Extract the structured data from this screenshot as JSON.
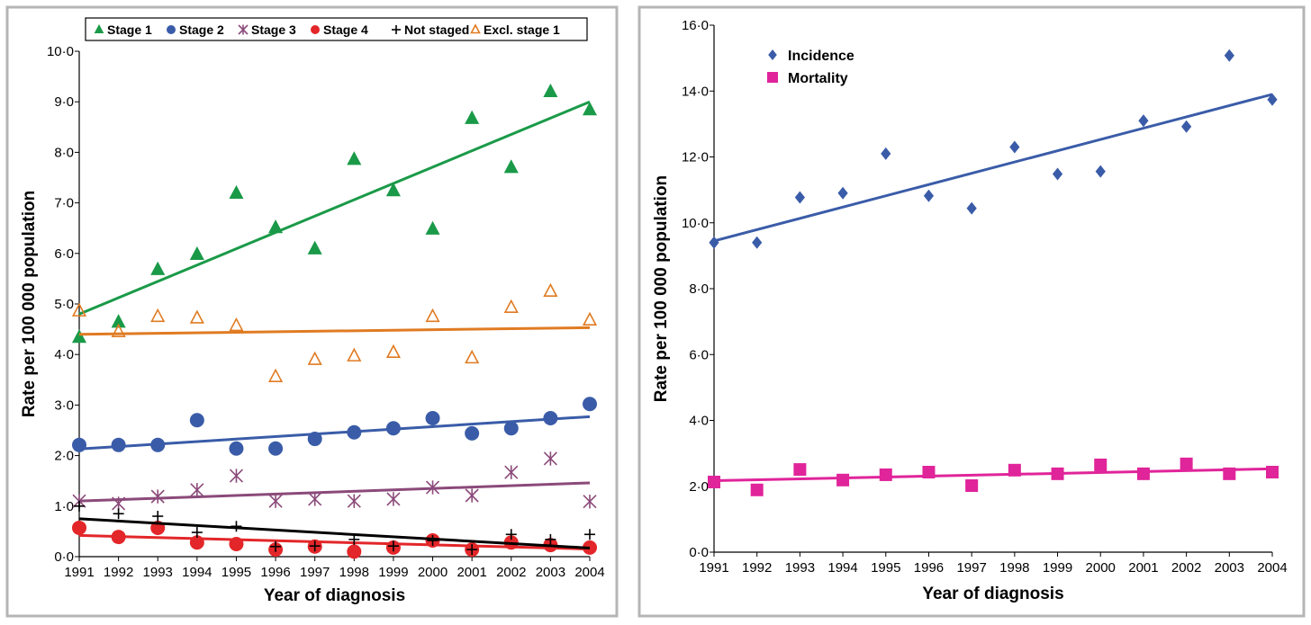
{
  "chart_data": [
    {
      "type": "scatter",
      "title": "",
      "xlabel": "Year of diagnosis",
      "ylabel": "Rate per 100 000 population",
      "ylim": [
        0,
        10
      ],
      "yticks": [
        "0·0",
        "1·0",
        "2·0",
        "3·0",
        "4·0",
        "5·0",
        "6·0",
        "7·0",
        "8·0",
        "9·0",
        "10·0"
      ],
      "x": [
        1991,
        1992,
        1993,
        1994,
        1995,
        1996,
        1997,
        1998,
        1999,
        2000,
        2001,
        2002,
        2003,
        2004
      ],
      "legend_position": "top",
      "series": [
        {
          "name": "Stage 1",
          "marker": "triangle",
          "color": "#1a9a48",
          "values": [
            4.34,
            4.64,
            5.68,
            5.98,
            7.19,
            6.51,
            6.09,
            7.86,
            7.24,
            6.48,
            8.67,
            7.7,
            9.2,
            8.84
          ],
          "trend": [
            4.8,
            9.0
          ]
        },
        {
          "name": "Stage 2",
          "marker": "circle",
          "color": "#3a5ca8",
          "values": [
            2.21,
            2.21,
            2.21,
            2.7,
            2.14,
            2.14,
            2.33,
            2.46,
            2.54,
            2.74,
            2.44,
            2.54,
            2.74,
            3.02
          ],
          "trend": [
            2.13,
            2.77
          ]
        },
        {
          "name": "Stage 3",
          "marker": "asterisk",
          "color": "#8b4a7a",
          "values": [
            1.1,
            1.05,
            1.19,
            1.32,
            1.6,
            1.1,
            1.14,
            1.1,
            1.14,
            1.37,
            1.21,
            1.67,
            1.94,
            1.09
          ],
          "trend": [
            1.1,
            1.46
          ]
        },
        {
          "name": "Stage 4",
          "marker": "circle",
          "color": "#e32629",
          "values": [
            0.57,
            0.39,
            0.57,
            0.28,
            0.25,
            0.14,
            0.2,
            0.1,
            0.18,
            0.32,
            0.14,
            0.28,
            0.23,
            0.18
          ],
          "trend": [
            0.42,
            0.15
          ]
        },
        {
          "name": "Not staged",
          "marker": "plus",
          "color": "#000000",
          "values": [
            1.0,
            0.85,
            0.8,
            0.48,
            0.6,
            0.2,
            0.21,
            0.34,
            0.21,
            0.32,
            0.14,
            0.44,
            0.34,
            0.44
          ],
          "trend": [
            0.75,
            0.17
          ]
        },
        {
          "name": "Excl. stage 1",
          "marker": "open-triangle",
          "color": "#e07b22",
          "values": [
            4.86,
            4.45,
            4.75,
            4.72,
            4.57,
            3.56,
            3.9,
            3.97,
            4.04,
            4.75,
            3.93,
            4.93,
            5.25,
            4.68
          ],
          "trend": [
            4.4,
            4.53
          ]
        }
      ]
    },
    {
      "type": "scatter",
      "title": "",
      "xlabel": "Year of diagnosis",
      "ylabel": "Rate per 100 000 population",
      "ylim": [
        0,
        16
      ],
      "yticks": [
        "0·0",
        "2·0",
        "4·0",
        "6·0",
        "8·0",
        "10·0",
        "12·0",
        "14·0",
        "16·0"
      ],
      "x": [
        1991,
        1992,
        1993,
        1994,
        1995,
        1996,
        1997,
        1998,
        1999,
        2000,
        2001,
        2002,
        2003,
        2004
      ],
      "legend_position": "top-left",
      "series": [
        {
          "name": "Incidence",
          "marker": "diamond",
          "color": "#3a5ca8",
          "values": [
            9.4,
            9.4,
            10.77,
            10.9,
            12.1,
            10.82,
            10.44,
            12.3,
            11.48,
            11.56,
            13.1,
            12.92,
            15.08,
            13.74
          ],
          "trend": [
            9.45,
            13.9
          ]
        },
        {
          "name": "Mortality",
          "marker": "square",
          "color": "#e0249a",
          "values": [
            2.13,
            1.89,
            2.51,
            2.19,
            2.35,
            2.43,
            2.02,
            2.49,
            2.38,
            2.65,
            2.38,
            2.68,
            2.38,
            2.43
          ],
          "trend": [
            2.17,
            2.53
          ]
        }
      ]
    }
  ]
}
